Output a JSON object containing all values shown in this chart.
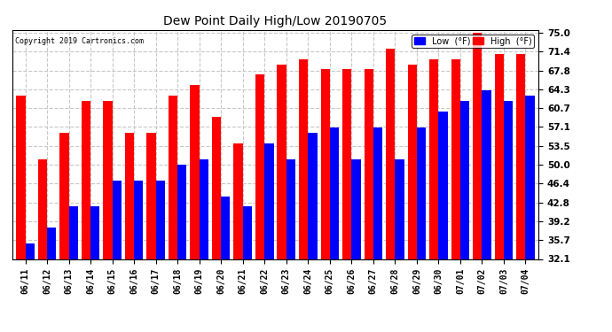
{
  "title": "Dew Point Daily High/Low 20190705",
  "copyright": "Copyright 2019 Cartronics.com",
  "dates": [
    "06/11",
    "06/12",
    "06/13",
    "06/14",
    "06/15",
    "06/16",
    "06/17",
    "06/18",
    "06/19",
    "06/20",
    "06/21",
    "06/22",
    "06/23",
    "06/24",
    "06/25",
    "06/26",
    "06/27",
    "06/28",
    "06/29",
    "06/30",
    "07/01",
    "07/02",
    "07/03",
    "07/04"
  ],
  "high": [
    63.0,
    51.0,
    56.0,
    62.0,
    62.0,
    56.0,
    56.0,
    63.0,
    65.0,
    59.0,
    54.0,
    67.0,
    69.0,
    70.0,
    68.0,
    68.0,
    68.0,
    72.0,
    69.0,
    70.0,
    70.0,
    75.0,
    71.0,
    71.0
  ],
  "low": [
    35.0,
    38.0,
    42.0,
    42.0,
    47.0,
    47.0,
    47.0,
    50.0,
    51.0,
    44.0,
    42.0,
    54.0,
    51.0,
    56.0,
    57.0,
    51.0,
    57.0,
    51.0,
    57.0,
    60.0,
    62.0,
    64.0,
    62.0,
    63.0
  ],
  "high_color": "#ff0000",
  "low_color": "#0000ff",
  "bg_color": "#ffffff",
  "grid_color": "#c8c8c8",
  "ylim_min": 32.1,
  "ylim_max": 75.5,
  "yticks": [
    32.1,
    35.7,
    39.2,
    42.8,
    46.4,
    50.0,
    53.5,
    57.1,
    60.7,
    64.3,
    67.8,
    71.4,
    75.0
  ],
  "bar_width": 0.42
}
